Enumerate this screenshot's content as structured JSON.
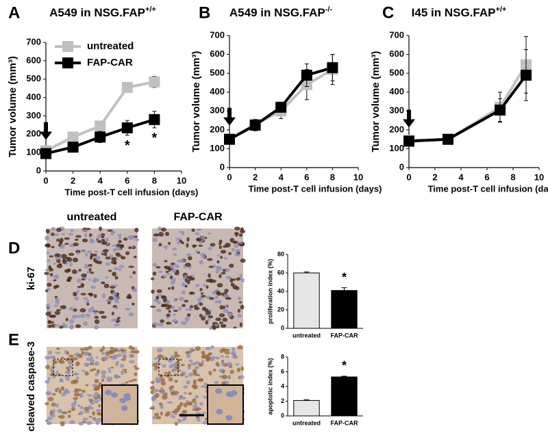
{
  "chart_data": [
    {
      "type": "line",
      "panel": "A",
      "title": "A549 in NSG.FAP",
      "title_sup": "+/+",
      "x_label": "Time post-T cell infusion (days)",
      "y_label": "Tumor volume (mm³)",
      "x": [
        0,
        2,
        4,
        6,
        8
      ],
      "series": [
        {
          "name": "untreated",
          "color": "#c0c0c0",
          "values": [
            110,
            185,
            245,
            455,
            485
          ],
          "errors": [
            15,
            20,
            15,
            20,
            30
          ]
        },
        {
          "name": "FAP-CAR",
          "color": "#000000",
          "values": [
            95,
            130,
            185,
            235,
            280
          ],
          "errors": [
            15,
            20,
            30,
            40,
            45
          ]
        }
      ],
      "xlim": [
        0,
        10
      ],
      "xticks": [
        0,
        2,
        4,
        6,
        8,
        10
      ],
      "ylim": [
        0,
        700
      ],
      "yticks": [
        0,
        100,
        200,
        300,
        400,
        500,
        600,
        700
      ],
      "annotations": [
        {
          "x": 6,
          "text": "*"
        },
        {
          "x": 8,
          "text": "*"
        }
      ],
      "legend": "upper left"
    },
    {
      "type": "line",
      "panel": "B",
      "title": "A549 in NSG.FAP",
      "title_sup": "-/-",
      "x_label": "Time post-T cell infusion (days)",
      "y_label": "Tumor volume (mm³)",
      "x": [
        0,
        2,
        4,
        6,
        8
      ],
      "series": [
        {
          "name": "untreated",
          "color": "#c0c0c0",
          "values": [
            150,
            230,
            300,
            440,
            520
          ],
          "errors": [
            20,
            25,
            40,
            80,
            80
          ]
        },
        {
          "name": "FAP-CAR",
          "color": "#000000",
          "values": [
            150,
            225,
            320,
            490,
            530
          ],
          "errors": [
            20,
            30,
            20,
            60,
            70
          ]
        }
      ],
      "xlim": [
        0,
        10
      ],
      "xticks": [
        0,
        2,
        4,
        6,
        8,
        10
      ],
      "ylim": [
        0,
        700
      ],
      "yticks": [
        0,
        100,
        200,
        300,
        400,
        500,
        600,
        700
      ]
    },
    {
      "type": "line",
      "panel": "C",
      "title": "I45 in NSG.FAP",
      "title_sup": "+/+",
      "x_label": "Time post-T cell infusion (days)",
      "y_label": "Tumor volume (mm³)",
      "x": [
        0,
        3,
        7,
        9
      ],
      "series": [
        {
          "name": "untreated",
          "color": "#c0c0c0",
          "values": [
            145,
            150,
            320,
            545
          ],
          "errors": [
            20,
            15,
            80,
            150
          ]
        },
        {
          "name": "FAP-CAR",
          "color": "#000000",
          "values": [
            140,
            150,
            305,
            490
          ],
          "errors": [
            20,
            15,
            60,
            135
          ]
        }
      ],
      "xlim": [
        0,
        10
      ],
      "xticks": [
        0,
        2,
        4,
        6,
        8,
        10
      ],
      "ylim": [
        0,
        700
      ],
      "yticks": [
        0,
        100,
        200,
        300,
        400,
        500,
        600,
        700
      ]
    },
    {
      "type": "bar",
      "panel": "D",
      "row_label": "ki-67",
      "image_labels": [
        "untreated",
        "FAP-CAR"
      ],
      "y_label": "proliferation index (%)",
      "categories": [
        "untreated",
        "FAP-CAR"
      ],
      "values": [
        60,
        41
      ],
      "errors": [
        1,
        3
      ],
      "colors": [
        "#e6e6e6",
        "#000000"
      ],
      "ylim": [
        0,
        80
      ],
      "yticks": [
        0,
        20,
        40,
        60,
        80
      ],
      "annotation": "*"
    },
    {
      "type": "bar",
      "panel": "E",
      "row_label": "cleaved caspase-3",
      "y_label": "apoptotic index (%)",
      "categories": [
        "untreated",
        "FAP-CAR"
      ],
      "values": [
        2.1,
        5.3
      ],
      "errors": [
        0.1,
        0.1
      ],
      "colors": [
        "#e6e6e6",
        "#000000"
      ],
      "ylim": [
        0,
        8
      ],
      "yticks": [
        0,
        2,
        4,
        6,
        8
      ],
      "annotation": "*"
    }
  ]
}
